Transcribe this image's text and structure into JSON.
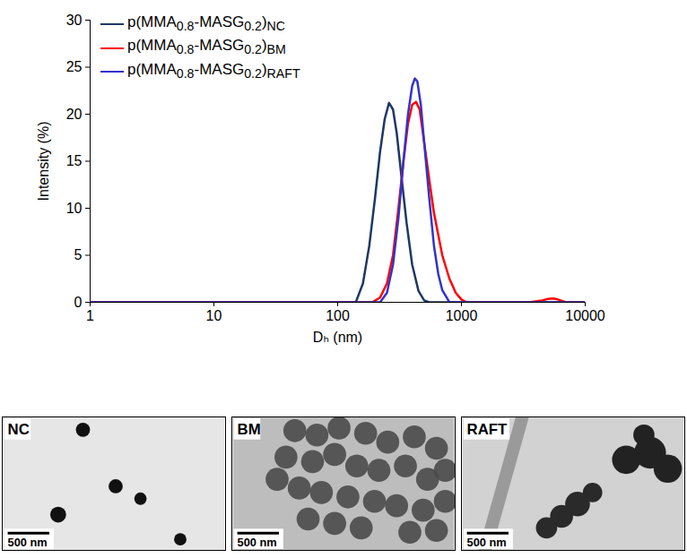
{
  "chart_data": {
    "type": "line",
    "x_label": "Dₕ (nm)",
    "y_label": "Intensity (%)",
    "log": "x",
    "grid": false,
    "legend": "top-left",
    "xlim": [
      1,
      10000
    ],
    "xticks": [
      1,
      10,
      100,
      1000,
      10000
    ],
    "ylim": [
      0,
      30
    ],
    "yticks": [
      0,
      5,
      10,
      15,
      20,
      25,
      30
    ],
    "series": [
      {
        "name": "p(MMA0.8-MASG0.2)NC",
        "color": "#1f3864",
        "x": [
          1,
          140,
          160,
          180,
          200,
          220,
          240,
          260,
          280,
          300,
          330,
          360,
          400,
          450,
          500,
          550,
          10000
        ],
        "values": [
          0,
          0,
          2,
          6,
          11,
          16,
          19.5,
          21.2,
          20.5,
          18,
          13,
          8.5,
          4,
          1.2,
          0.2,
          0,
          0
        ]
      },
      {
        "name": "p(MMA0.8-MASG0.2)BM",
        "color": "#ff0000",
        "x": [
          1,
          190,
          220,
          250,
          280,
          310,
          340,
          370,
          400,
          430,
          460,
          500,
          550,
          600,
          700,
          800,
          900,
          1000,
          1100,
          3500,
          4500,
          5000,
          5500,
          6000,
          7000,
          10000
        ],
        "values": [
          0,
          0,
          0.5,
          2,
          5,
          10,
          15,
          19,
          21,
          21.3,
          20.5,
          17,
          13,
          9.5,
          5,
          2.5,
          1,
          0.3,
          0,
          0,
          0.2,
          0.35,
          0.4,
          0.3,
          0,
          0
        ]
      },
      {
        "name": "p(MMA0.8-MASG0.2)RAFT",
        "color": "#3333cc",
        "x": [
          1,
          220,
          250,
          280,
          310,
          340,
          370,
          400,
          420,
          440,
          470,
          500,
          550,
          600,
          650,
          700,
          800,
          10000
        ],
        "values": [
          0,
          0,
          1,
          4,
          9,
          15,
          20,
          23,
          23.8,
          23.5,
          21,
          17,
          11,
          6,
          3,
          1.3,
          0,
          0
        ]
      }
    ]
  },
  "panels": [
    {
      "label": "NC",
      "scale_bar": "500 nm"
    },
    {
      "label": "BM",
      "scale_bar": "500 nm"
    },
    {
      "label": "RAFT",
      "scale_bar": "500 nm"
    }
  ]
}
